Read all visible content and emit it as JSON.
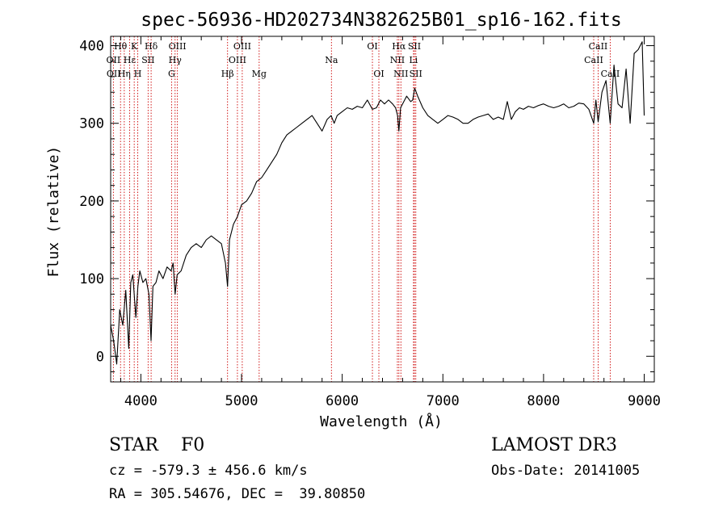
{
  "chart_data": {
    "type": "line",
    "title": "spec-56936-HD202734N382625B01_sp16-162.fits",
    "xlabel": "Wavelength (Å)",
    "ylabel": "Flux (relative)",
    "xlim": [
      3700,
      9100
    ],
    "ylim": [
      -33,
      412
    ],
    "xticks": [
      4000,
      5000,
      6000,
      7000,
      8000,
      9000
    ],
    "xtick_labels": [
      "4000",
      "5000",
      "6000",
      "7000",
      "8000",
      "9000"
    ],
    "yticks": [
      0,
      100,
      200,
      300,
      400
    ],
    "ytick_labels": [
      "0",
      "100",
      "200",
      "300",
      "400"
    ],
    "grid": false,
    "series": [
      {
        "name": "spectrum",
        "x": [
          3700,
          3730,
          3760,
          3790,
          3820,
          3850,
          3880,
          3900,
          3920,
          3950,
          3970,
          3990,
          4020,
          4050,
          4080,
          4101,
          4120,
          4150,
          4180,
          4220,
          4260,
          4300,
          4320,
          4340,
          4360,
          4400,
          4450,
          4500,
          4550,
          4600,
          4650,
          4700,
          4750,
          4800,
          4840,
          4861,
          4880,
          4920,
          4960,
          5000,
          5050,
          5100,
          5150,
          5200,
          5250,
          5300,
          5350,
          5400,
          5450,
          5500,
          5550,
          5600,
          5650,
          5700,
          5750,
          5800,
          5850,
          5890,
          5920,
          5950,
          6000,
          6050,
          6100,
          6150,
          6200,
          6250,
          6300,
          6340,
          6380,
          6420,
          6460,
          6500,
          6530,
          6550,
          6563,
          6580,
          6600,
          6640,
          6680,
          6700,
          6720,
          6750,
          6800,
          6850,
          6900,
          6950,
          7000,
          7050,
          7100,
          7150,
          7200,
          7250,
          7300,
          7350,
          7400,
          7450,
          7500,
          7550,
          7600,
          7640,
          7680,
          7720,
          7760,
          7800,
          7850,
          7900,
          7950,
          8000,
          8050,
          8100,
          8150,
          8200,
          8250,
          8300,
          8350,
          8400,
          8450,
          8498,
          8520,
          8542,
          8580,
          8620,
          8662,
          8700,
          8740,
          8780,
          8820,
          8860,
          8900,
          8940,
          8980,
          9000
        ],
        "y": [
          40,
          20,
          -10,
          60,
          40,
          85,
          10,
          95,
          105,
          50,
          90,
          110,
          95,
          100,
          80,
          20,
          90,
          95,
          110,
          100,
          115,
          110,
          120,
          80,
          105,
          110,
          130,
          140,
          145,
          140,
          150,
          155,
          150,
          145,
          120,
          90,
          150,
          170,
          180,
          195,
          200,
          210,
          225,
          230,
          240,
          250,
          260,
          275,
          285,
          290,
          295,
          300,
          305,
          310,
          300,
          290,
          305,
          310,
          300,
          310,
          315,
          320,
          318,
          322,
          320,
          330,
          318,
          320,
          330,
          325,
          330,
          325,
          320,
          310,
          290,
          320,
          325,
          335,
          328,
          330,
          345,
          335,
          320,
          310,
          305,
          300,
          305,
          310,
          308,
          305,
          300,
          300,
          305,
          308,
          310,
          312,
          305,
          308,
          305,
          328,
          305,
          315,
          320,
          318,
          322,
          320,
          323,
          325,
          322,
          320,
          322,
          325,
          320,
          322,
          326,
          325,
          318,
          300,
          330,
          302,
          340,
          355,
          300,
          375,
          325,
          320,
          370,
          300,
          390,
          395,
          405,
          310
        ]
      }
    ],
    "line_labels": [
      {
        "row": 1,
        "text": "Hθ",
        "x": 3798
      },
      {
        "row": 1,
        "text": "K",
        "x": 3934
      },
      {
        "row": 1,
        "text": "Hδ",
        "x": 4102
      },
      {
        "row": 1,
        "text": "OIII",
        "x": 4363
      },
      {
        "row": 1,
        "text": "OIII",
        "x": 5007
      },
      {
        "row": 1,
        "text": "OI",
        "x": 6300
      },
      {
        "row": 1,
        "text": "Hα",
        "x": 6563
      },
      {
        "row": 1,
        "text": "SII",
        "x": 6717
      },
      {
        "row": 1,
        "text": "CaII",
        "x": 8542
      },
      {
        "row": 2,
        "text": "OII",
        "x": 3727
      },
      {
        "row": 2,
        "text": "Hε",
        "x": 3889
      },
      {
        "row": 2,
        "text": "SII",
        "x": 4072
      },
      {
        "row": 2,
        "text": "Hγ",
        "x": 4340
      },
      {
        "row": 2,
        "text": "OIII",
        "x": 4959
      },
      {
        "row": 2,
        "text": "Na",
        "x": 5893
      },
      {
        "row": 2,
        "text": "NII",
        "x": 6548
      },
      {
        "row": 2,
        "text": "Li",
        "x": 6708
      },
      {
        "row": 2,
        "text": "CaII",
        "x": 8498
      },
      {
        "row": 3,
        "text": "OII",
        "x": 3730
      },
      {
        "row": 3,
        "text": "Hη",
        "x": 3835
      },
      {
        "row": 3,
        "text": "H",
        "x": 3969
      },
      {
        "row": 3,
        "text": "G",
        "x": 4305
      },
      {
        "row": 3,
        "text": "Hβ",
        "x": 4861
      },
      {
        "row": 3,
        "text": "Mg",
        "x": 5175
      },
      {
        "row": 3,
        "text": "OI",
        "x": 6364
      },
      {
        "row": 3,
        "text": "NII",
        "x": 6583
      },
      {
        "row": 3,
        "text": "SII",
        "x": 6731
      },
      {
        "row": 3,
        "text": "CaII",
        "x": 8662
      }
    ],
    "line_markers": [
      3727,
      3798,
      3835,
      3889,
      3934,
      3969,
      4072,
      4102,
      4305,
      4340,
      4363,
      4861,
      4959,
      5007,
      5175,
      5893,
      6300,
      6364,
      6548,
      6563,
      6583,
      6708,
      6717,
      6731,
      8498,
      8542,
      8662
    ]
  },
  "info": {
    "object_line": "STAR    F0",
    "survey": "LAMOST DR3",
    "cz": "cz = -579.3 ± 456.6 km/s",
    "obs_date": "Obs-Date: 20141005",
    "coords": "RA = 305.54676, DEC =  39.80850"
  },
  "colors": {
    "spectrum": "#000000",
    "line_marker": "#cc0000",
    "axes": "#000000"
  }
}
